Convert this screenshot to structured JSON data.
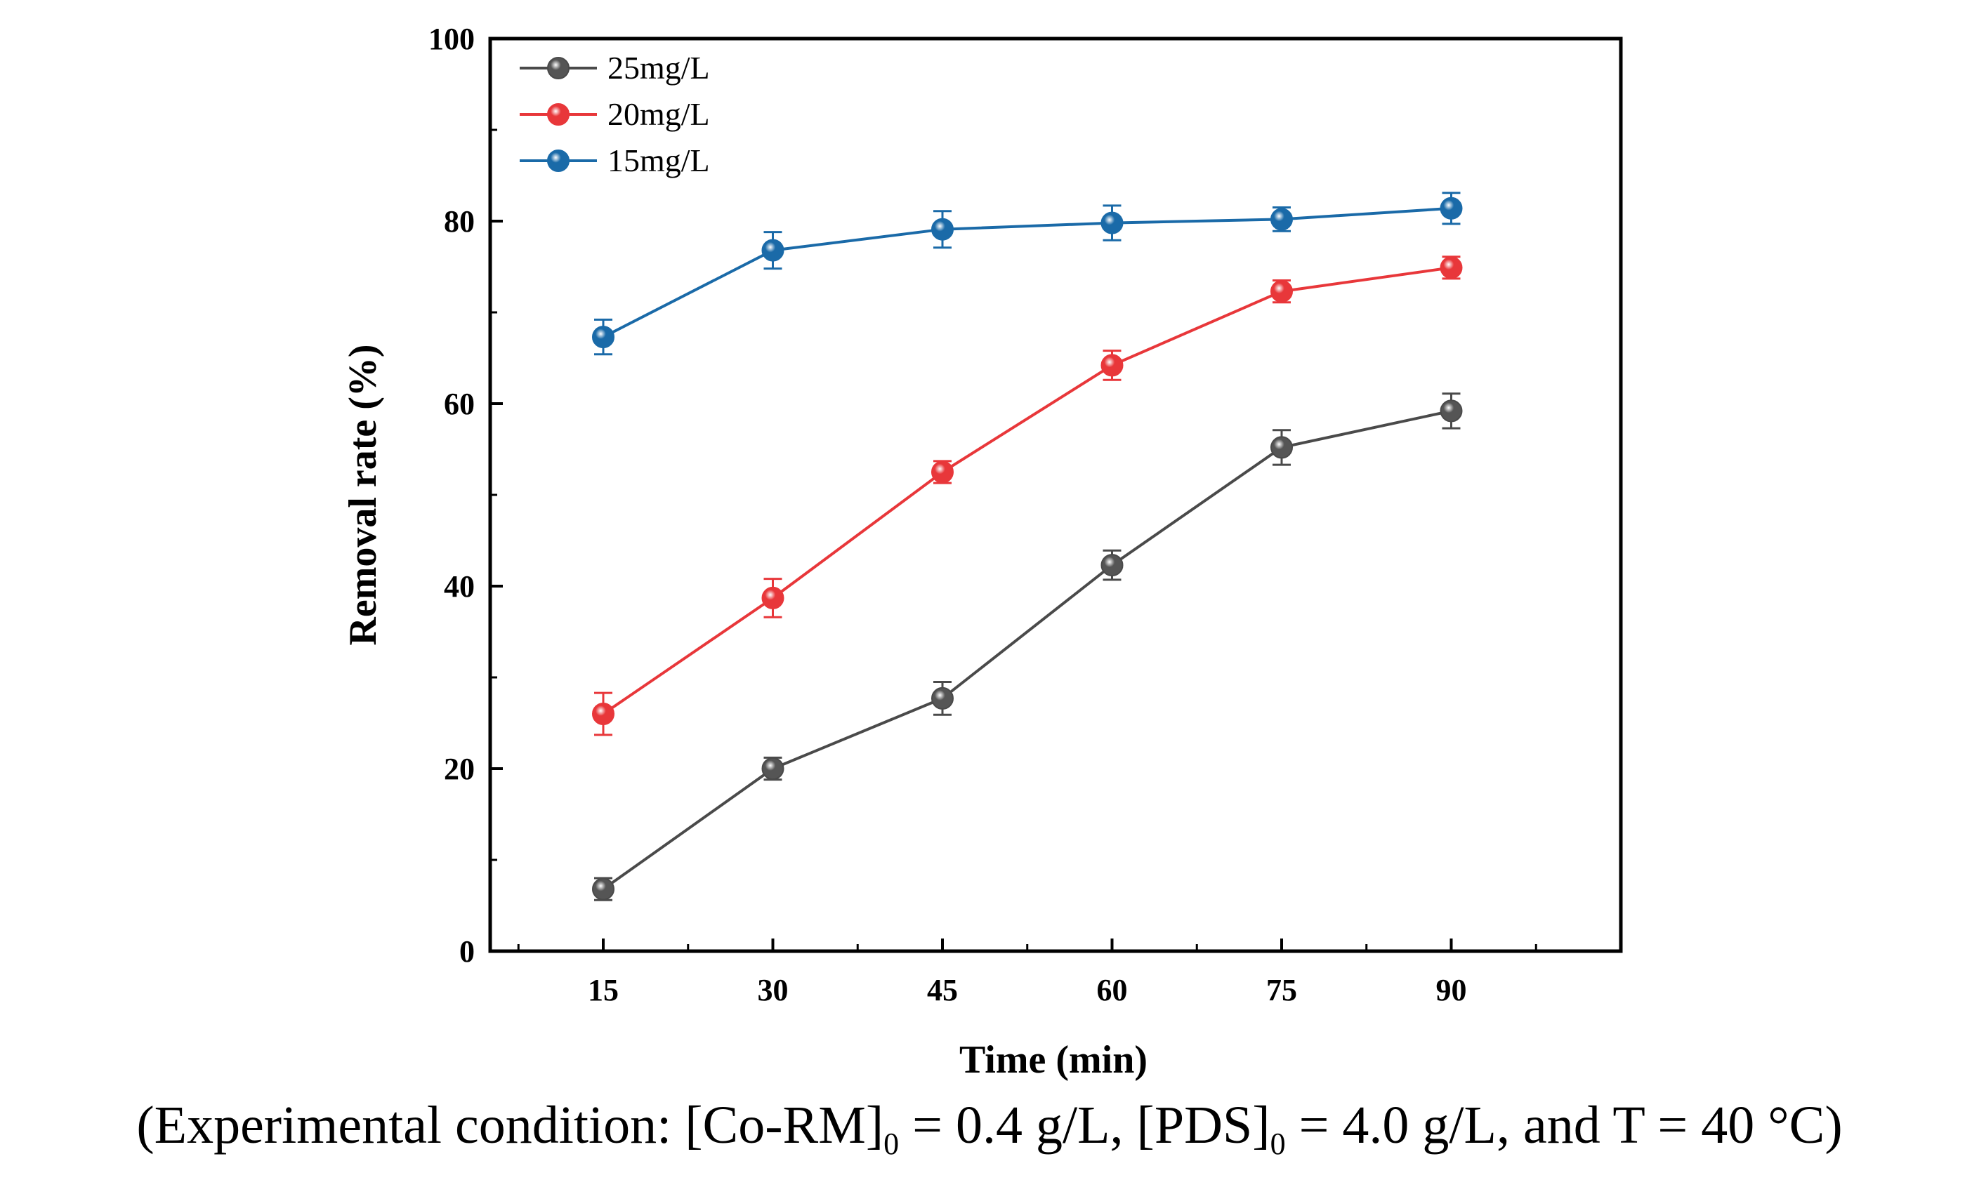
{
  "chart_data": {
    "type": "line",
    "title": "",
    "xlabel": "Time (min)",
    "ylabel": "Removal rate (%)",
    "x": [
      15,
      30,
      45,
      60,
      75,
      90
    ],
    "xlim": [
      5,
      105
    ],
    "ylim": [
      0,
      100
    ],
    "yticks": [
      0,
      20,
      40,
      60,
      80,
      100
    ],
    "xticks": [
      15,
      30,
      45,
      60,
      75,
      90
    ],
    "grid": false,
    "legend_position": "top-left",
    "series": [
      {
        "name": "25mg/L",
        "color": "#4a4a4a",
        "marker_color": "#555555",
        "values": [
          6.8,
          20.0,
          27.7,
          42.3,
          55.2,
          59.2
        ],
        "errors": [
          1.2,
          1.2,
          1.8,
          1.6,
          1.9,
          1.9
        ]
      },
      {
        "name": "20mg/L",
        "color": "#e8373a",
        "marker_color": "#e8373a",
        "values": [
          26.0,
          38.7,
          52.5,
          64.2,
          72.3,
          74.9
        ],
        "errors": [
          2.3,
          2.1,
          1.2,
          1.6,
          1.2,
          1.2
        ]
      },
      {
        "name": "15mg/L",
        "color": "#1a6aa8",
        "marker_color": "#1a6aa8",
        "values": [
          67.3,
          76.8,
          79.1,
          79.8,
          80.2,
          81.4
        ],
        "errors": [
          1.9,
          2.0,
          2.0,
          1.9,
          1.3,
          1.7
        ]
      }
    ]
  },
  "caption": {
    "prefix": "(Experimental condition: [Co-RM]",
    "sub1": "0",
    "mid": " = 0.4 g/L, [PDS]",
    "sub2": "0",
    "suffix": " = 4.0 g/L, and T = 40 °C)"
  }
}
